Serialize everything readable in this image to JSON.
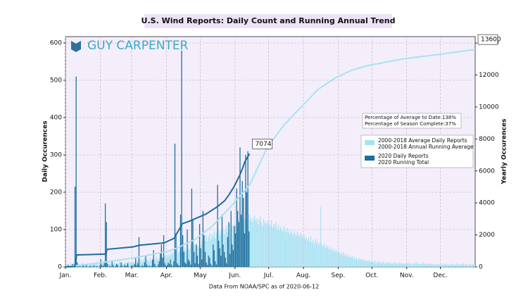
{
  "chart_data": {
    "type": "combo",
    "title": "U.S. Wind Reports: Daily Count and Running Annual Trend",
    "brand": "GUY CARPENTER",
    "footer": "Data From NOAA/SPC as of 2020-06-12",
    "y_label": "Daily Occurences",
    "y2_label": "Yearly Occurences",
    "annotations": [
      "Percentage of Average to Date:138%",
      "Percentage of Season Complete:37%"
    ],
    "grid": true,
    "xlim": [
      0,
      365
    ],
    "xticks": [
      {
        "value": 0,
        "label": "Jan."
      },
      {
        "value": 31,
        "label": "Feb."
      },
      {
        "value": 59,
        "label": "Mar."
      },
      {
        "value": 90,
        "label": "Apr."
      },
      {
        "value": 120,
        "label": "May"
      },
      {
        "value": 151,
        "label": "Jun."
      },
      {
        "value": 181,
        "label": "Jul."
      },
      {
        "value": 212,
        "label": "Aug."
      },
      {
        "value": 243,
        "label": "Sep."
      },
      {
        "value": 273,
        "label": "Oct."
      },
      {
        "value": 304,
        "label": "Nov."
      },
      {
        "value": 334,
        "label": "Dec."
      }
    ],
    "ylim": [
      0,
      617
    ],
    "yticks": [
      0,
      100,
      200,
      300,
      400,
      500,
      600
    ],
    "y2lim": [
      0,
      14400
    ],
    "y2ticks": [
      0,
      2000,
      4000,
      6000,
      8000,
      10000,
      12000,
      14000
    ],
    "series": [
      {
        "name": "2000-2018 Average Daily Reports",
        "kind": "bar",
        "color": "#a6e3f2",
        "values": [
          5,
          8,
          6,
          4,
          10,
          7,
          5,
          9,
          6,
          8,
          12,
          5,
          7,
          6,
          9,
          11,
          5,
          8,
          6,
          7,
          10,
          4,
          6,
          9,
          7,
          5,
          8,
          12,
          6,
          7,
          9,
          8,
          10,
          6,
          12,
          9,
          7,
          14,
          8,
          10,
          6,
          11,
          9,
          13,
          7,
          10,
          8,
          12,
          15,
          9,
          11,
          8,
          10,
          14,
          12,
          9,
          16,
          11,
          13,
          12,
          15,
          10,
          18,
          14,
          20,
          11,
          16,
          22,
          13,
          18,
          25,
          15,
          19,
          21,
          14,
          24,
          17,
          20,
          26,
          18,
          23,
          28,
          19,
          25,
          22,
          30,
          24,
          27,
          32,
          26,
          28,
          35,
          30,
          40,
          33,
          38,
          45,
          36,
          42,
          50,
          38,
          44,
          48,
          40,
          55,
          46,
          52,
          43,
          58,
          50,
          47,
          60,
          54,
          49,
          62,
          56,
          65,
          58,
          52,
          68,
          60,
          72,
          65,
          78,
          70,
          85,
          68,
          80,
          90,
          75,
          88,
          82,
          95,
          78,
          92,
          86,
          100,
          84,
          96,
          90,
          105,
          88,
          98,
          110,
          94,
          102,
          115,
          100,
          108,
          112,
          104,
          110,
          118,
          105,
          125,
          112,
          130,
          120,
          115,
          128,
          135,
          122,
          118,
          140,
          126,
          132,
          120,
          128,
          138,
          124,
          130,
          115,
          126,
          135,
          120,
          110,
          128,
          118,
          122,
          112,
          125,
          118,
          110,
          125,
          105,
          115,
          108,
          120,
          100,
          112,
          98,
          108,
          102,
          95,
          110,
          100,
          92,
          105,
          96,
          88,
          100,
          92,
          85,
          98,
          90,
          82,
          95,
          88,
          80,
          92,
          85,
          78,
          85,
          75,
          80,
          70,
          78,
          68,
          82,
          65,
          72,
          60,
          75,
          62,
          70,
          58,
          65,
          160,
          60,
          55,
          62,
          50,
          58,
          52,
          48,
          55,
          45,
          50,
          42,
          48,
          40,
          45,
          38,
          42,
          35,
          38,
          32,
          40,
          30,
          35,
          28,
          33,
          26,
          30,
          25,
          28,
          22,
          27,
          20,
          25,
          18,
          24,
          20,
          22,
          17,
          21,
          16,
          20,
          15,
          18,
          14,
          17,
          13,
          15,
          12,
          18,
          10,
          14,
          11,
          16,
          9,
          13,
          10,
          15,
          8,
          12,
          9,
          14,
          10,
          12,
          8,
          11,
          9,
          13,
          8,
          10,
          7,
          12,
          9,
          11,
          8,
          10,
          7,
          9,
          10,
          8,
          12,
          7,
          9,
          6,
          11,
          8,
          14,
          7,
          10,
          6,
          9,
          8,
          12,
          7,
          9,
          6,
          8,
          10,
          7,
          9,
          6,
          8,
          5,
          7,
          9,
          6,
          8,
          7,
          7,
          5,
          8,
          6,
          9,
          5,
          7,
          4,
          8,
          6,
          10,
          5,
          7,
          6,
          9,
          4,
          8,
          5,
          7,
          6,
          10,
          5,
          8,
          6,
          7,
          4,
          9,
          5,
          8,
          6,
          7
        ]
      },
      {
        "name": "2000-2018 Annual Running Average",
        "kind": "line",
        "axis": "y2",
        "color": "#a6e3f2",
        "x": [
          0,
          30,
          60,
          90,
          100,
          115,
          130,
          145,
          164,
          180,
          195,
          210,
          225,
          240,
          255,
          270,
          300,
          334,
          365
        ],
        "values": [
          0,
          250,
          550,
          950,
          1200,
          1700,
          2500,
          3600,
          5117,
          7500,
          8900,
          10000,
          11100,
          11800,
          12300,
          12600,
          13000,
          13300,
          13600
        ]
      },
      {
        "name": "2020 Daily Reports",
        "kind": "bar",
        "color": "#1a6e9e",
        "values": [
          2,
          0,
          5,
          1,
          0,
          3,
          8,
          2,
          215,
          510,
          12,
          0,
          3,
          1,
          0,
          4,
          2,
          0,
          6,
          1,
          0,
          2,
          3,
          0,
          1,
          5,
          0,
          2,
          1,
          0,
          3,
          20,
          5,
          2,
          10,
          170,
          120,
          8,
          0,
          3,
          1,
          15,
          4,
          0,
          2,
          8,
          5,
          0,
          1,
          12,
          3,
          0,
          6,
          2,
          4,
          10,
          1,
          0,
          3,
          5,
          2,
          8,
          25,
          4,
          10,
          80,
          3,
          0,
          5,
          2,
          12,
          30,
          6,
          1,
          4,
          0,
          3,
          20,
          45,
          8,
          2,
          0,
          6,
          15,
          40,
          60,
          25,
          85,
          10,
          3,
          5,
          12,
          8,
          20,
          6,
          2,
          15,
          330,
          90,
          10,
          5,
          3,
          140,
          580,
          85,
          40,
          12,
          8,
          100,
          20,
          15,
          6,
          210,
          125,
          40,
          10,
          60,
          30,
          8,
          115,
          50,
          20,
          150,
          85,
          40,
          12,
          5,
          30,
          25,
          8,
          3,
          60,
          45,
          15,
          6,
          220,
          70,
          50,
          30,
          140,
          60,
          40,
          25,
          10,
          80,
          120,
          35,
          150,
          60,
          45,
          110,
          90,
          210,
          150,
          120,
          320,
          140,
          230,
          185,
          90,
          300,
          200,
          310,
          95
        ]
      },
      {
        "name": "2020 Running Total",
        "kind": "line",
        "axis": "y2",
        "color": "#1a6e9e",
        "x": [
          0,
          8,
          9,
          10,
          36,
          37,
          60,
          66,
          88,
          97,
          98,
          103,
          104,
          110,
          125,
          135,
          142,
          146,
          150,
          155,
          158,
          160,
          164
        ],
        "values": [
          0,
          20,
          240,
          750,
          800,
          1100,
          1250,
          1350,
          1500,
          1800,
          1950,
          2550,
          2700,
          2850,
          3300,
          3750,
          4150,
          4550,
          5000,
          5700,
          6200,
          6600,
          7074
        ]
      }
    ]
  }
}
